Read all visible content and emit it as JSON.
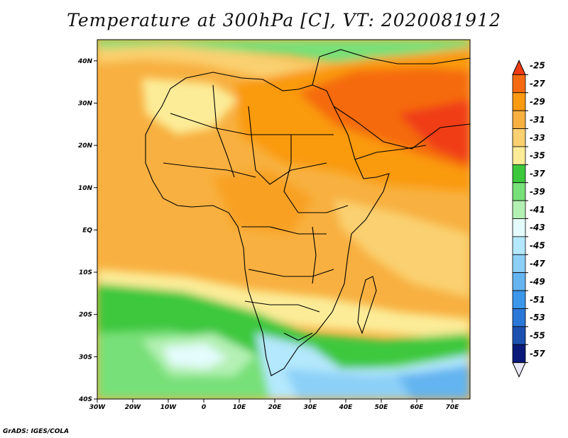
{
  "title": "Temperature at 300hPa [C], VT: 2020081912",
  "credit": "GrADS: IGES/COLA",
  "map": {
    "lon_range": [
      -30,
      75
    ],
    "lat_range": [
      -40,
      45
    ],
    "lon_ticks": [
      {
        "value": -30,
        "label": "30W"
      },
      {
        "value": -20,
        "label": "20W"
      },
      {
        "value": -10,
        "label": "10W"
      },
      {
        "value": 0,
        "label": "0"
      },
      {
        "value": 10,
        "label": "10E"
      },
      {
        "value": 20,
        "label": "20E"
      },
      {
        "value": 30,
        "label": "30E"
      },
      {
        "value": 40,
        "label": "40E"
      },
      {
        "value": 50,
        "label": "50E"
      },
      {
        "value": 60,
        "label": "60E"
      },
      {
        "value": 70,
        "label": "70E"
      }
    ],
    "lat_ticks": [
      {
        "value": 40,
        "label": "40N"
      },
      {
        "value": 30,
        "label": "30N"
      },
      {
        "value": 20,
        "label": "20N"
      },
      {
        "value": 10,
        "label": "10N"
      },
      {
        "value": 0,
        "label": "EQ"
      },
      {
        "value": -10,
        "label": "10S"
      },
      {
        "value": -20,
        "label": "20S"
      },
      {
        "value": -30,
        "label": "30S"
      },
      {
        "value": -40,
        "label": "40S"
      }
    ]
  },
  "colorbar": {
    "levels": [
      "-25",
      "-27",
      "-29",
      "-31",
      "-33",
      "-35",
      "-37",
      "-39",
      "-41",
      "-43",
      "-45",
      "-47",
      "-49",
      "-51",
      "-53",
      "-55",
      "-57"
    ],
    "colors": [
      "#f03c14",
      "#f56a10",
      "#fa9a10",
      "#f8b040",
      "#fad070",
      "#fcec98",
      "#3cc83c",
      "#78e078",
      "#b4f0b4",
      "#e4fcfc",
      "#b4e8fc",
      "#8cd0f8",
      "#64b4f0",
      "#3c96ea",
      "#2c78d8",
      "#1c50b0",
      "#0a1a7a"
    ]
  }
}
